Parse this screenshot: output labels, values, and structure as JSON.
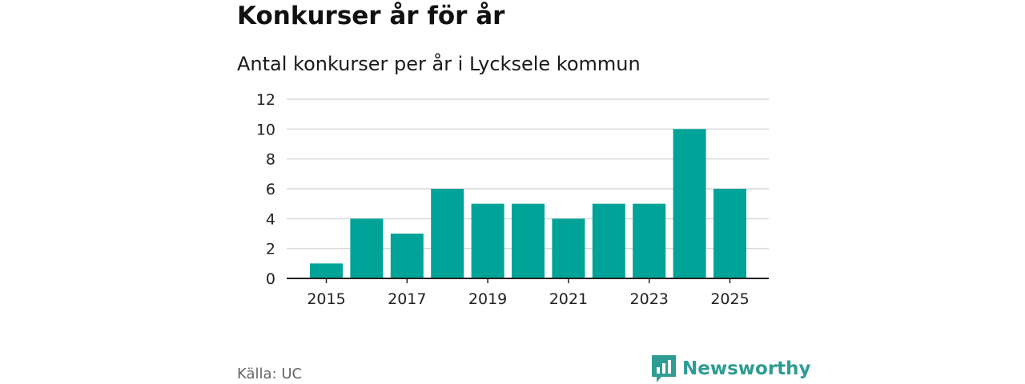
{
  "header": {
    "title": "Konkurser år för år",
    "subtitle": "Antal konkurser per år i Lycksele kommun"
  },
  "footer": {
    "source": "Källa: UC",
    "brand": "Newsworthy",
    "brand_icon": "newsworthy-logo-icon"
  },
  "colors": {
    "bar": "#00a398",
    "brand": "#2e9c93",
    "grid": "#d9d9d9",
    "axis": "#222222",
    "text": "#222222"
  },
  "chart_data": {
    "type": "bar",
    "categories": [
      "2015",
      "2016",
      "2017",
      "2018",
      "2019",
      "2020",
      "2021",
      "2022",
      "2023",
      "2024",
      "2025"
    ],
    "values": [
      1,
      4,
      3,
      6,
      5,
      5,
      4,
      5,
      5,
      10,
      6
    ],
    "x_tick_labels": [
      "2015",
      "2017",
      "2019",
      "2021",
      "2023",
      "2025"
    ],
    "y_ticks": [
      0,
      2,
      4,
      6,
      8,
      10,
      12
    ],
    "ylim": [
      0,
      12
    ],
    "grid": true,
    "xlabel": "",
    "ylabel": ""
  }
}
